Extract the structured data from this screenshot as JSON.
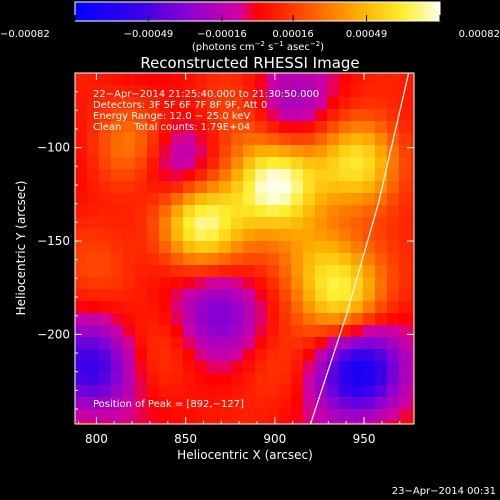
{
  "chart_data": {
    "type": "heatmap",
    "title": "Reconstructed RHESSI Image",
    "xlabel": "Heliocentric X (arcsec)",
    "ylabel": "Heliocentric Y (arcsec)",
    "xlim": [
      788,
      978
    ],
    "ylim": [
      -248,
      -60
    ],
    "x_ticks": [
      800,
      850,
      900,
      950
    ],
    "y_ticks": [
      -100,
      -150,
      -200
    ],
    "colorbar": {
      "label_parts": [
        "(photons cm",
        "−2",
        " s",
        "−1",
        " asec",
        "−2",
        ")"
      ],
      "tick_values": [
        -0.00082,
        -0.00049,
        -0.00016,
        0.00016,
        0.00049,
        0.00082
      ],
      "tick_labels": [
        "−0.00082",
        "−0.00049",
        "−0.00016",
        "0.00016",
        "0.00049",
        "0.00082"
      ],
      "range": [
        -0.00082,
        0.00082
      ]
    },
    "annotations": {
      "time": "22−Apr−2014 21:25:40.000 to 21:30:50.000",
      "detectors": "Detectors: 3F 5F 6F 7F 8F 9F, Att 0",
      "energy": "Energy Range: 12.0 − 25.0 keV",
      "method": "Clean",
      "counts": "Total counts: 1.79E+04",
      "peak": "Position of Peak = [892,−127]"
    },
    "limb": {
      "points": [
        [
          975,
          -60
        ],
        [
          958,
          -130
        ],
        [
          940,
          -190
        ],
        [
          920,
          -248
        ]
      ]
    },
    "sources": [
      {
        "x": 880,
        "y": -88,
        "value": 0.00022
      },
      {
        "x": 822,
        "y": -100,
        "value": 0.00038
      },
      {
        "x": 858,
        "y": -140,
        "value": 0.00072
      },
      {
        "x": 900,
        "y": -120,
        "value": 0.00078
      },
      {
        "x": 948,
        "y": -108,
        "value": 0.00062
      },
      {
        "x": 922,
        "y": -158,
        "value": 0.00034
      },
      {
        "x": 938,
        "y": -180,
        "value": 0.00056
      },
      {
        "x": 806,
        "y": -165,
        "value": 0.00014
      },
      {
        "x": 838,
        "y": -208,
        "value": 0.0001
      },
      {
        "x": 896,
        "y": -218,
        "value": 0.00012
      },
      {
        "x": 798,
        "y": -218,
        "value": -0.00055
      },
      {
        "x": 842,
        "y": -108,
        "value": -0.00042
      },
      {
        "x": 946,
        "y": -220,
        "value": -0.00075
      },
      {
        "x": 868,
        "y": -188,
        "value": -0.00038
      },
      {
        "x": 908,
        "y": -80,
        "value": -0.0003
      }
    ],
    "footer": "23−Apr−2014 00:31"
  }
}
